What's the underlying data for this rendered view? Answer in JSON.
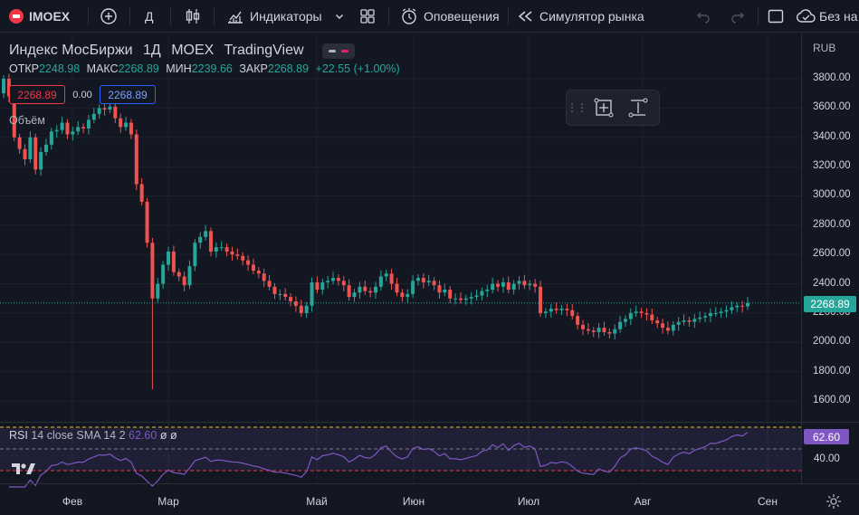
{
  "toolbar": {
    "symbol": "IMOEX",
    "interval": "Д",
    "indicators_label": "Индикаторы",
    "alerts_label": "Оповещения",
    "replay_label": "Симулятор рынка",
    "save_label": "Без на",
    "icons": [
      "flag-icon",
      "plus-circle-icon",
      "candles-icon",
      "indicators-icon",
      "chevron-down-icon",
      "layout-grid-icon",
      "alarm-clock-icon",
      "replay-icon",
      "undo-icon",
      "redo-icon",
      "fullscreen-icon",
      "cloud-save-icon"
    ]
  },
  "legend": {
    "name": "Индекс МосБиржи",
    "interval": "1Д",
    "exchange": "MOEX",
    "source": "TradingView",
    "open_label": "ОТКР",
    "open": "2248.98",
    "high_label": "МАКС",
    "high": "2268.89",
    "low_label": "МИН",
    "low": "2239.66",
    "close_label": "ЗАКР",
    "close": "2268.89",
    "change": "+22.55 (+1.00%)",
    "bid": "2268.89",
    "spread": "0.00",
    "ask": "2268.89",
    "volume_label": "Объём"
  },
  "rsi": {
    "name": "RSI",
    "params": "14 close SMA 14 2",
    "value": "62.60",
    "na1": "ø",
    "na2": "ø",
    "value_tag": "62.60",
    "tick": "40.00"
  },
  "price_axis": {
    "currency": "RUB",
    "ticks": [
      "3800.00",
      "3600.00",
      "3400.00",
      "3200.00",
      "3000.00",
      "2800.00",
      "2600.00",
      "2400.00",
      "2200.00",
      "2000.00",
      "1800.00",
      "1600.00"
    ],
    "last_price": "2268.89"
  },
  "time_axis": {
    "months": [
      "Фев",
      "Мар",
      "Май",
      "Июн",
      "Июл",
      "Авг",
      "Сен"
    ]
  },
  "colors": {
    "background": "#131722",
    "up": "#26a69a",
    "down": "#ef5350",
    "rsi_line": "#7e57c2",
    "grid": "#1e222d"
  },
  "chart_data": {
    "type": "candlestick",
    "y_range": [
      1500,
      3900
    ],
    "closes": [
      3800,
      3680,
      3400,
      3320,
      3250,
      3400,
      3180,
      3300,
      3350,
      3440,
      3450,
      3500,
      3420,
      3440,
      3470,
      3460,
      3520,
      3560,
      3600,
      3590,
      3610,
      3530,
      3470,
      3500,
      3420,
      3080,
      2960,
      2680,
      2300,
      2400,
      2530,
      2620,
      2480,
      2450,
      2390,
      2520,
      2680,
      2720,
      2760,
      2620,
      2650,
      2650,
      2620,
      2600,
      2590,
      2560,
      2530,
      2490,
      2470,
      2420,
      2380,
      2330,
      2330,
      2310,
      2280,
      2250,
      2200,
      2250,
      2410,
      2360,
      2410,
      2420,
      2440,
      2420,
      2390,
      2310,
      2340,
      2380,
      2350,
      2340,
      2380,
      2450,
      2470,
      2400,
      2340,
      2310,
      2330,
      2420,
      2440,
      2410,
      2420,
      2390,
      2340,
      2360,
      2300,
      2300,
      2290,
      2300,
      2310,
      2320,
      2350,
      2360,
      2400,
      2380,
      2410,
      2360,
      2400,
      2420,
      2390,
      2400,
      2380,
      2200,
      2210,
      2230,
      2220,
      2230,
      2220,
      2180,
      2120,
      2090,
      2080,
      2070,
      2100,
      2070,
      2060,
      2090,
      2140,
      2160,
      2200,
      2210,
      2200,
      2190,
      2150,
      2130,
      2100,
      2080,
      2120,
      2140,
      2150,
      2140,
      2160,
      2170,
      2180,
      2200,
      2200,
      2210,
      2220,
      2240,
      2250,
      2246,
      2269
    ]
  }
}
